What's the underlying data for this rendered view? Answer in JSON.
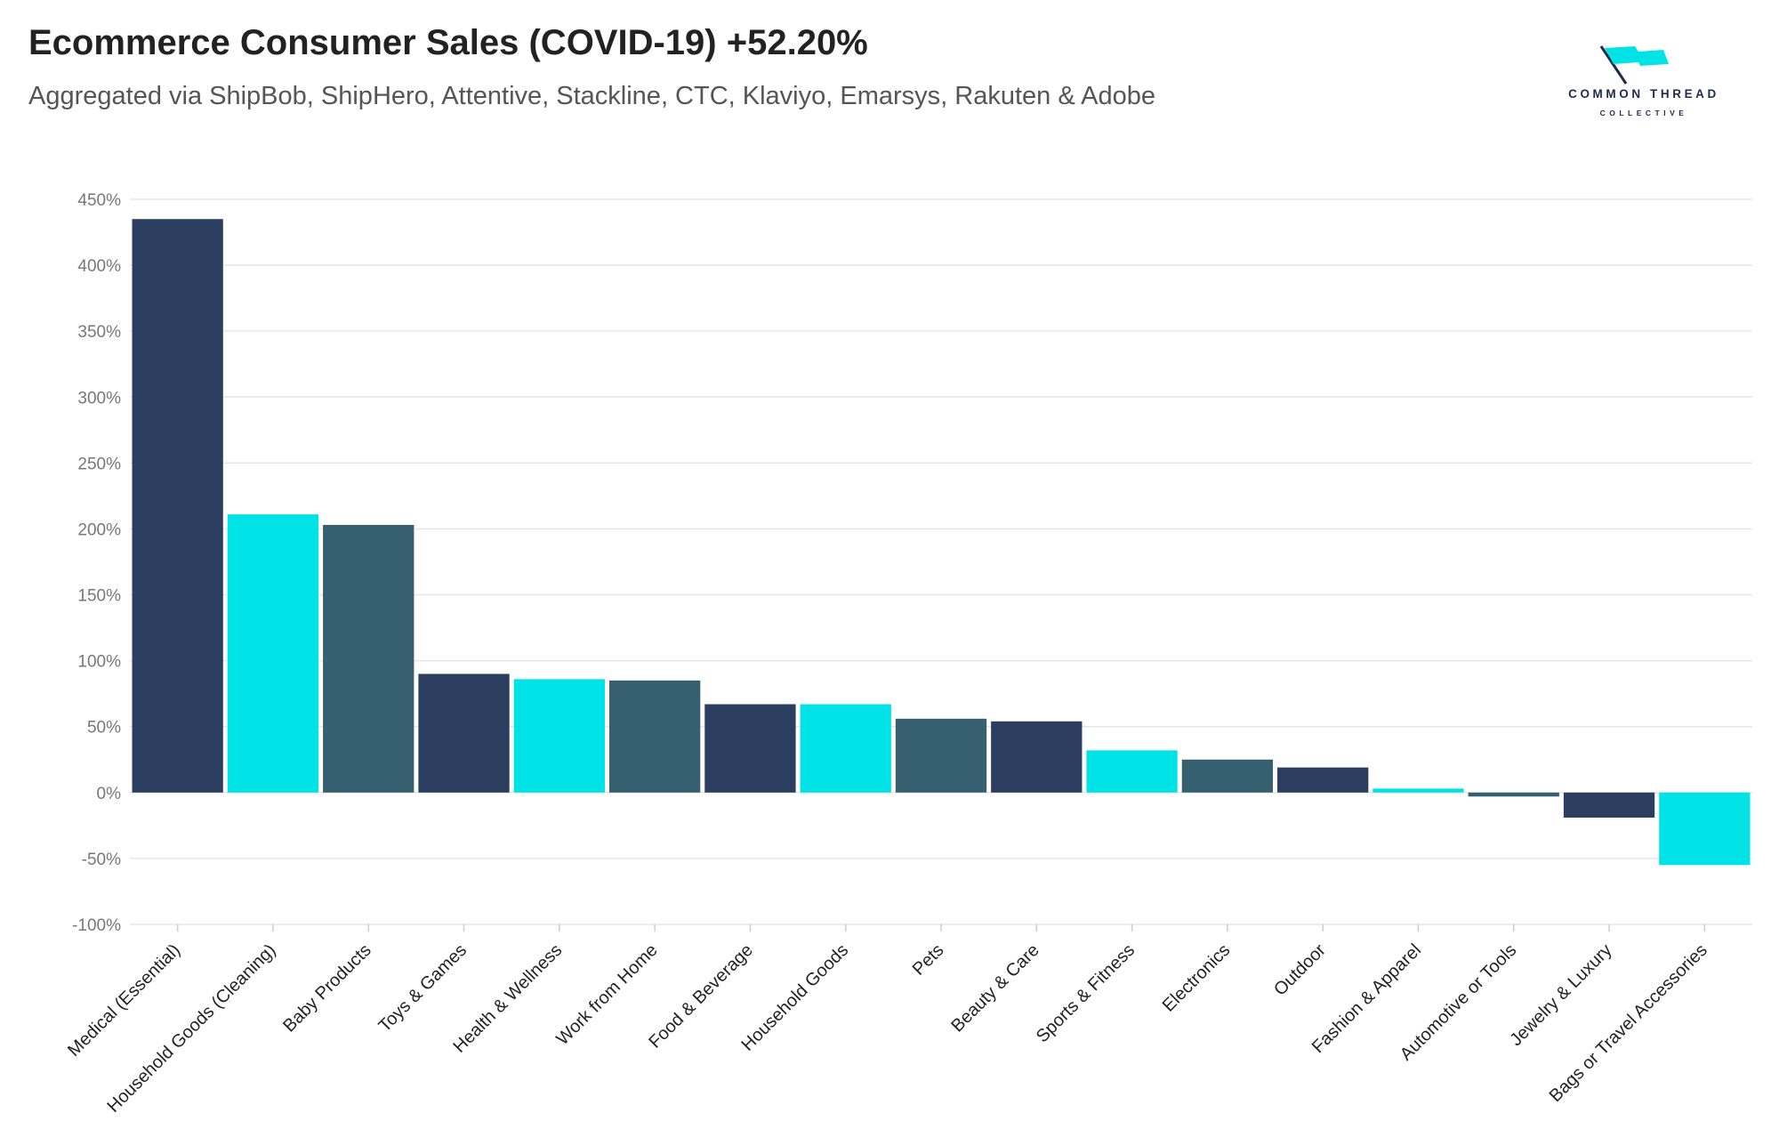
{
  "header": {
    "title": "Ecommerce Consumer Sales (COVID-19) +52.20%",
    "subtitle": "Aggregated via ShipBob, ShipHero, Attentive, Stackline, CTC, Klaviyo, Emarsys, Rakuten & Adobe"
  },
  "logo": {
    "line1": "COMMON THREAD",
    "line2": "COLLECTIVE",
    "icon": "flag-icon"
  },
  "colors": {
    "navy": "#2c3e5f",
    "cyan": "#00e3e6",
    "slate": "#365f6f",
    "grid": "#e6e6e6",
    "text": "#222222"
  },
  "chart_data": {
    "type": "bar",
    "ylim": [
      -100,
      450
    ],
    "yticks": [
      450,
      400,
      350,
      300,
      250,
      200,
      150,
      100,
      50,
      0,
      -50,
      -100
    ],
    "ytick_labels": [
      "450%",
      "400%",
      "350%",
      "300%",
      "250%",
      "200%",
      "150%",
      "100%",
      "50%",
      "0%",
      "-50%",
      "-100%"
    ],
    "grid": true,
    "categories": [
      "Medical (Essential)",
      "Household Goods (Cleaning)",
      "Baby Products",
      "Toys & Games",
      "Health & Wellness",
      "Work from Home",
      "Food & Beverage",
      "Household Goods",
      "Pets",
      "Beauty & Care",
      "Sports & Fitness",
      "Electronics",
      "Outdoor",
      "Fashion & Apparel",
      "Automotive or Tools",
      "Jewelry & Luxury",
      "Bags or Travel Accessories"
    ],
    "values": [
      435,
      211,
      203,
      90,
      86,
      85,
      67,
      67,
      56,
      54,
      32,
      25,
      19,
      3,
      -3,
      -19,
      -55
    ],
    "bar_colors": [
      "#2c3e5f",
      "#00e3e6",
      "#365f6f",
      "#2c3e5f",
      "#00e3e6",
      "#365f6f",
      "#2c3e5f",
      "#00e3e6",
      "#365f6f",
      "#2c3e5f",
      "#00e3e6",
      "#365f6f",
      "#2c3e5f",
      "#00e3e6",
      "#365f6f",
      "#2c3e5f",
      "#00e3e6"
    ]
  }
}
